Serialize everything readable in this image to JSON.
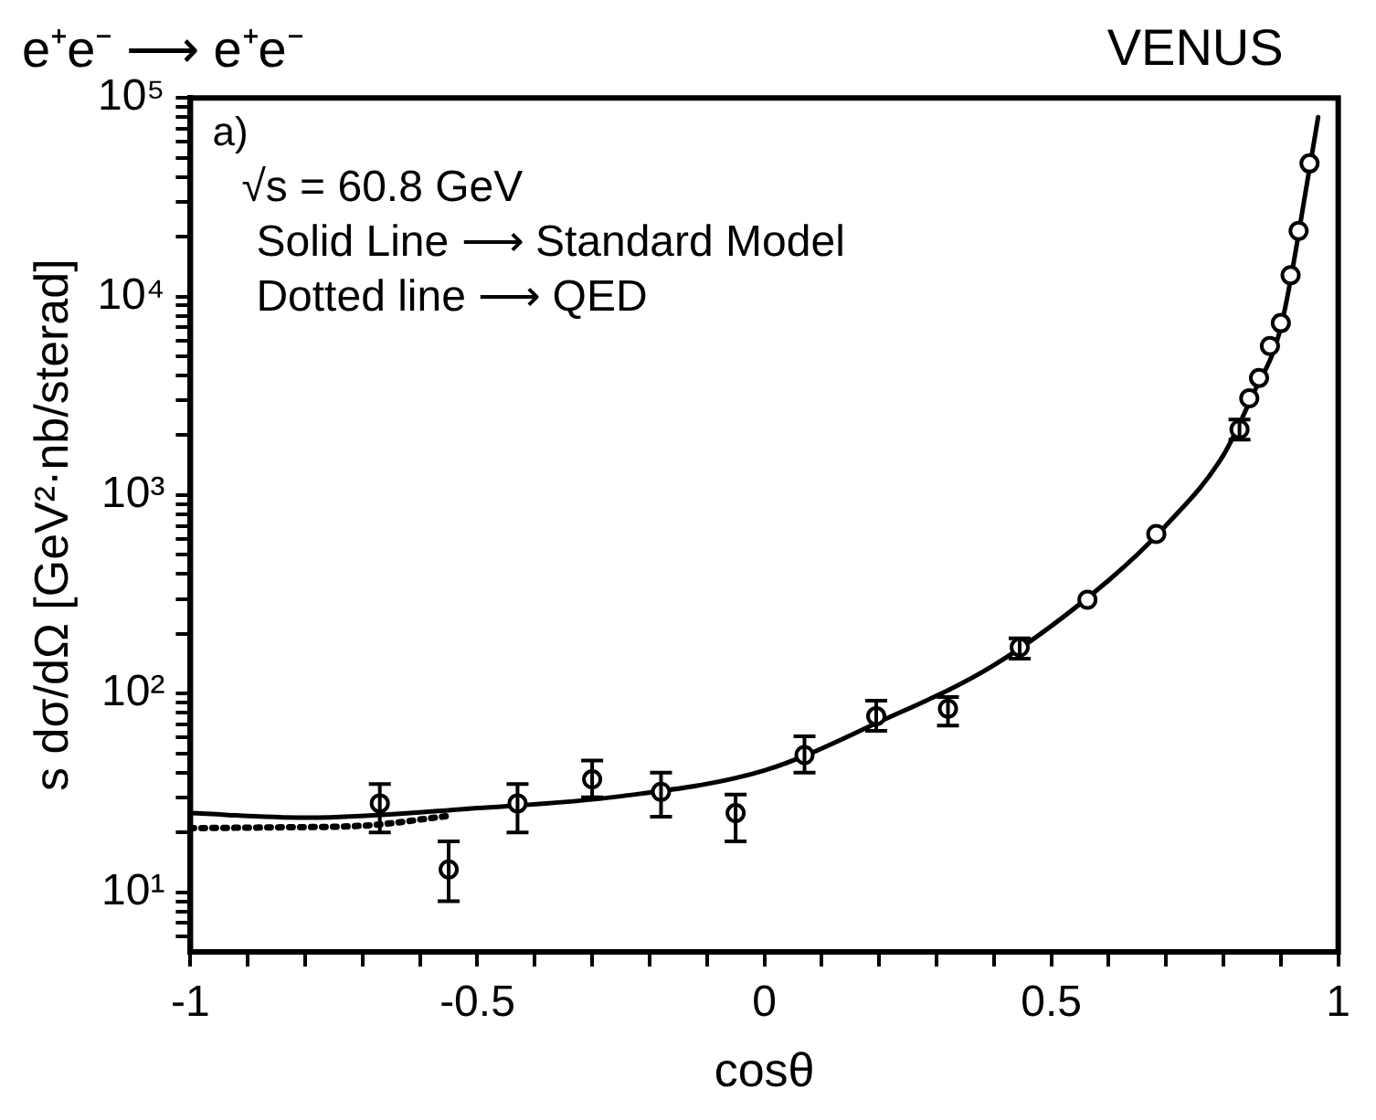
{
  "chart_data": {
    "type": "scatter",
    "title": "e⁺e⁻ ⟶ e⁺e⁻",
    "xlabel": "cosθ",
    "ylabel": "s dσ/dΩ [GeV²·nb/sterad]",
    "annotations": [
      "VENUS",
      "a)",
      "√s = 60.8 GeV",
      "Solid Line ⟶ Standard Model",
      "Dotted line ⟶ QED"
    ],
    "log": "y",
    "grid": false,
    "legend": false,
    "xlim": [
      -1,
      1
    ],
    "ylim": [
      5,
      100000
    ],
    "xticks": [
      -1,
      {
        "value": -0.9,
        "label": null
      },
      {
        "value": -0.8,
        "label": null
      },
      {
        "value": -0.7,
        "label": null
      },
      {
        "value": -0.6,
        "label": null
      },
      -0.5,
      {
        "value": -0.4,
        "label": null
      },
      {
        "value": -0.3,
        "label": null
      },
      {
        "value": -0.2,
        "label": null
      },
      {
        "value": -0.1,
        "label": null
      },
      0,
      {
        "value": 0.1,
        "label": null
      },
      {
        "value": 0.2,
        "label": null
      },
      {
        "value": 0.3,
        "label": null
      },
      {
        "value": 0.4,
        "label": null
      },
      0.5,
      {
        "value": 0.6,
        "label": null
      },
      {
        "value": 0.7,
        "label": null
      },
      {
        "value": 0.8,
        "label": null
      },
      {
        "value": 0.9,
        "label": null
      },
      1
    ],
    "yticks": [
      {
        "value": 6,
        "label": null
      },
      {
        "value": 7,
        "label": null
      },
      {
        "value": 8,
        "label": null
      },
      {
        "value": 9,
        "label": null
      },
      {
        "value": 10,
        "label": "10¹"
      },
      {
        "value": 20,
        "label": null
      },
      {
        "value": 30,
        "label": null
      },
      {
        "value": 40,
        "label": null
      },
      {
        "value": 50,
        "label": null
      },
      {
        "value": 60,
        "label": null
      },
      {
        "value": 70,
        "label": null
      },
      {
        "value": 80,
        "label": null
      },
      {
        "value": 90,
        "label": null
      },
      {
        "value": 100,
        "label": "10²"
      },
      {
        "value": 200,
        "label": null
      },
      {
        "value": 300,
        "label": null
      },
      {
        "value": 400,
        "label": null
      },
      {
        "value": 500,
        "label": null
      },
      {
        "value": 600,
        "label": null
      },
      {
        "value": 700,
        "label": null
      },
      {
        "value": 800,
        "label": null
      },
      {
        "value": 900,
        "label": null
      },
      {
        "value": 1000,
        "label": "10³"
      },
      {
        "value": 2000,
        "label": null
      },
      {
        "value": 3000,
        "label": null
      },
      {
        "value": 4000,
        "label": null
      },
      {
        "value": 5000,
        "label": null
      },
      {
        "value": 6000,
        "label": null
      },
      {
        "value": 7000,
        "label": null
      },
      {
        "value": 8000,
        "label": null
      },
      {
        "value": 9000,
        "label": null
      },
      {
        "value": 10000,
        "label": "10⁴"
      },
      {
        "value": 20000,
        "label": null
      },
      {
        "value": 30000,
        "label": null
      },
      {
        "value": 40000,
        "label": null
      },
      {
        "value": 50000,
        "label": null
      },
      {
        "value": 60000,
        "label": null
      },
      {
        "value": 70000,
        "label": null
      },
      {
        "value": 80000,
        "label": null
      },
      {
        "value": 90000,
        "label": null
      },
      {
        "value": 100000,
        "label": "10⁵"
      }
    ],
    "series": [
      {
        "marker": "circle",
        "color": "#000000",
        "x": [
          -0.67,
          -0.55,
          -0.43,
          -0.3,
          -0.18,
          -0.05,
          0.07,
          0.195,
          0.32,
          0.445,
          0.563,
          0.683,
          0.828,
          0.845,
          0.862,
          0.881,
          0.9,
          0.917,
          0.931,
          0.95
        ],
        "values": [
          28,
          13,
          28,
          37,
          32,
          25,
          49,
          77,
          84,
          171,
          297,
          637,
          2140,
          3070,
          3890,
          5630,
          7350,
          12800,
          21400,
          46800
        ],
        "errors": [
          [
            20,
            35
          ],
          [
            9,
            18
          ],
          [
            20,
            35
          ],
          [
            30,
            46
          ],
          [
            24,
            40
          ],
          [
            18,
            31
          ],
          [
            40,
            61
          ],
          [
            65,
            92
          ],
          [
            69,
            96
          ],
          [
            150,
            190
          ],
          null,
          null,
          [
            1900,
            2400
          ],
          null,
          null,
          null,
          null,
          null,
          null,
          null
        ]
      },
      {
        "type": "line",
        "marker": "none",
        "line_style": "solid",
        "color": "#000000",
        "x": [
          -1,
          -0.8,
          -0.5,
          -0.25,
          0,
          0.2,
          0.4,
          0.6,
          0.7,
          0.8,
          0.85,
          0.9,
          0.95,
          0.965
        ],
        "values": [
          25,
          23.7,
          26.5,
          30.4,
          41,
          72,
          139,
          372,
          703,
          1590,
          3150,
          7000,
          44000,
          80000
        ]
      },
      {
        "type": "line",
        "marker": "none",
        "line_style": "dotted",
        "color": "#000000",
        "x": [
          -1,
          -0.85,
          -0.7,
          -0.55
        ],
        "values": [
          21,
          21.2,
          21.6,
          24.2
        ]
      }
    ]
  }
}
